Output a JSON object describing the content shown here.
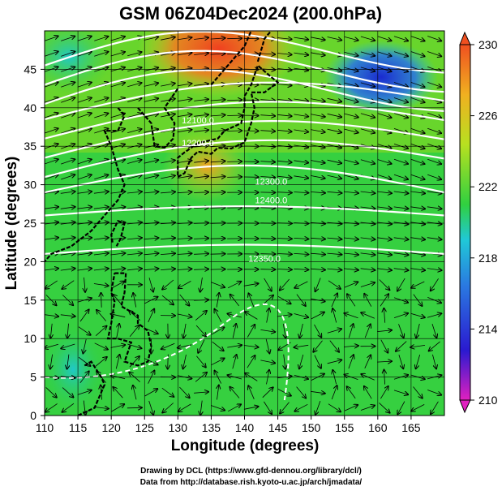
{
  "title": "GSM 06Z04Dec2024 (200.0hPa)",
  "xlabel": "Longitude (degrees)",
  "ylabel": "Latitude  (degrees)",
  "x_ticks": [
    "110",
    "115",
    "120",
    "125",
    "130",
    "135",
    "140",
    "145",
    "150",
    "155",
    "160",
    "165"
  ],
  "y_ticks": [
    "0",
    "5",
    "10",
    "15",
    "20",
    "25",
    "30",
    "35",
    "40",
    "45"
  ],
  "x_range": [
    110,
    170
  ],
  "y_range": [
    0,
    50
  ],
  "colorbar": {
    "ticks": [
      "210",
      "214",
      "218",
      "222",
      "226",
      "230"
    ],
    "range": [
      210,
      230
    ],
    "colors": [
      "#e020c0",
      "#2a1ad0",
      "#2a78e0",
      "#20c8d8",
      "#30d040",
      "#b8e020",
      "#f0b020",
      "#f05020"
    ]
  },
  "contour_labels": [
    "12300.0",
    "12400.0",
    "12350.0",
    "12200.0",
    "12100.0"
  ],
  "credit_lines": [
    "Drawing by DCL (https://www.gfd-dennou.org/library/dcl/)",
    "Data from http://database.rish.kyoto-u.ac.jp/arch/jmadata/"
  ]
}
